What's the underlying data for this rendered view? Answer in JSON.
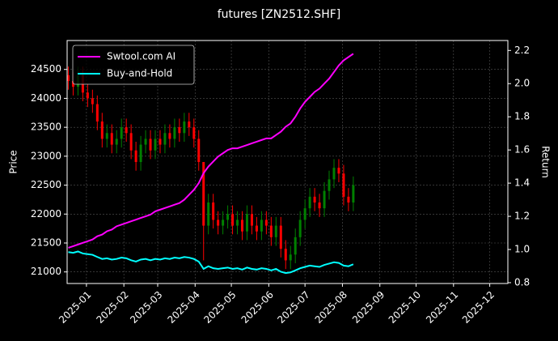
{
  "chart_data": {
    "type": "candlestick",
    "title": "futures [ZN2512.SHF]",
    "ylabel": "Price",
    "y2label": "Return",
    "up_color": "#008000",
    "down_color": "#ff0000",
    "grid": true,
    "legend": "upper left",
    "x": [
      "2024-12-17",
      "2024-12-21",
      "2024-12-25",
      "2024-12-29",
      "2025-01-02",
      "2025-01-06",
      "2025-01-10",
      "2025-01-14",
      "2025-01-18",
      "2025-01-22",
      "2025-01-26",
      "2025-01-30",
      "2025-02-03",
      "2025-02-07",
      "2025-02-11",
      "2025-02-15",
      "2025-02-19",
      "2025-02-23",
      "2025-02-27",
      "2025-03-03",
      "2025-03-07",
      "2025-03-11",
      "2025-03-15",
      "2025-03-19",
      "2025-03-23",
      "2025-03-27",
      "2025-03-31",
      "2025-04-04",
      "2025-04-08",
      "2025-04-12",
      "2025-04-16",
      "2025-04-20",
      "2025-04-24",
      "2025-04-28",
      "2025-05-02",
      "2025-05-06",
      "2025-05-10",
      "2025-05-14",
      "2025-05-18",
      "2025-05-22",
      "2025-05-26",
      "2025-05-30",
      "2025-06-03",
      "2025-06-07",
      "2025-06-11",
      "2025-06-15",
      "2025-06-19",
      "2025-06-23",
      "2025-06-27",
      "2025-07-01",
      "2025-07-05",
      "2025-07-09",
      "2025-07-13",
      "2025-07-17",
      "2025-07-21",
      "2025-07-25",
      "2025-07-29",
      "2025-08-02",
      "2025-08-06",
      "2025-08-10"
    ],
    "open": [
      24400,
      24300,
      24200,
      24400,
      24100,
      24000,
      23900,
      23600,
      23300,
      23400,
      23200,
      23300,
      23500,
      23400,
      23100,
      22900,
      23200,
      23300,
      23100,
      23300,
      23200,
      23400,
      23300,
      23500,
      23400,
      23600,
      23500,
      23300,
      22900,
      21800,
      22200,
      21900,
      21800,
      21900,
      22000,
      21800,
      21900,
      21700,
      22000,
      21800,
      21700,
      21900,
      21800,
      21600,
      21800,
      21400,
      21200,
      21300,
      21600,
      21900,
      22100,
      22300,
      22200,
      22100,
      22400,
      22600,
      22800,
      22700,
      22300,
      22200
    ],
    "high": [
      24550,
      24450,
      24550,
      24550,
      24250,
      24150,
      24050,
      23750,
      23550,
      23550,
      23450,
      23650,
      23650,
      23550,
      23250,
      23350,
      23450,
      23450,
      23450,
      23450,
      23550,
      23550,
      23650,
      23650,
      23750,
      23750,
      23650,
      23450,
      22900,
      22350,
      22350,
      22050,
      22050,
      22150,
      22150,
      22050,
      22050,
      22150,
      22150,
      21950,
      22050,
      22050,
      21950,
      21950,
      21950,
      21550,
      21450,
      21750,
      22050,
      22250,
      22450,
      22450,
      22350,
      22550,
      22750,
      22950,
      22950,
      22850,
      22450,
      22650
    ],
    "low": [
      24150,
      24050,
      24050,
      23950,
      23850,
      23750,
      23450,
      23150,
      23150,
      23050,
      23050,
      23150,
      23250,
      22950,
      22750,
      22750,
      23050,
      22950,
      22950,
      23050,
      23050,
      23150,
      23150,
      23250,
      23250,
      23350,
      23150,
      22750,
      21200,
      21650,
      21750,
      21650,
      21650,
      21750,
      21650,
      21650,
      21550,
      21550,
      21650,
      21550,
      21550,
      21650,
      21450,
      21450,
      21250,
      21050,
      21050,
      21150,
      21450,
      21750,
      21950,
      22050,
      21950,
      21950,
      22250,
      22450,
      22550,
      22150,
      22050,
      22050
    ],
    "close": [
      24300,
      24200,
      24400,
      24100,
      24000,
      23900,
      23600,
      23300,
      23400,
      23200,
      23300,
      23500,
      23400,
      23100,
      22900,
      23200,
      23300,
      23100,
      23300,
      23200,
      23400,
      23300,
      23500,
      23400,
      23600,
      23500,
      23300,
      22900,
      21800,
      22200,
      21900,
      21800,
      21900,
      22000,
      21800,
      21900,
      21700,
      22000,
      21800,
      21700,
      21900,
      21800,
      21600,
      21800,
      21400,
      21200,
      21300,
      21600,
      21900,
      22100,
      22300,
      22200,
      22100,
      22400,
      22600,
      22800,
      22700,
      22300,
      22200,
      22500
    ],
    "series": [
      {
        "name": "Swtool.com AI",
        "color": "#ff00ff",
        "axis": "y2",
        "values": [
          1.01,
          1.02,
          1.03,
          1.04,
          1.05,
          1.06,
          1.08,
          1.09,
          1.11,
          1.12,
          1.14,
          1.15,
          1.16,
          1.17,
          1.18,
          1.19,
          1.2,
          1.21,
          1.23,
          1.24,
          1.25,
          1.26,
          1.27,
          1.28,
          1.3,
          1.33,
          1.36,
          1.4,
          1.46,
          1.5,
          1.53,
          1.56,
          1.58,
          1.6,
          1.61,
          1.61,
          1.62,
          1.63,
          1.64,
          1.65,
          1.66,
          1.67,
          1.67,
          1.69,
          1.71,
          1.74,
          1.76,
          1.8,
          1.85,
          1.89,
          1.92,
          1.95,
          1.97,
          2.0,
          2.03,
          2.07,
          2.11,
          2.14,
          2.16,
          2.18
        ]
      },
      {
        "name": "Buy-and-Hold",
        "color": "#00ffff",
        "axis": "y2",
        "values": [
          0.984,
          0.98,
          0.988,
          0.976,
          0.972,
          0.968,
          0.955,
          0.943,
          0.947,
          0.939,
          0.943,
          0.951,
          0.947,
          0.935,
          0.927,
          0.939,
          0.943,
          0.935,
          0.943,
          0.939,
          0.947,
          0.943,
          0.951,
          0.947,
          0.955,
          0.951,
          0.943,
          0.927,
          0.883,
          0.899,
          0.887,
          0.883,
          0.887,
          0.891,
          0.883,
          0.887,
          0.879,
          0.891,
          0.883,
          0.879,
          0.887,
          0.883,
          0.874,
          0.883,
          0.866,
          0.858,
          0.862,
          0.874,
          0.887,
          0.895,
          0.903,
          0.899,
          0.895,
          0.907,
          0.915,
          0.923,
          0.919,
          0.903,
          0.899,
          0.911
        ]
      }
    ],
    "xlim": [
      "2024-12-16",
      "2025-12-16"
    ],
    "xticks": [
      "2025-01",
      "2025-02",
      "2025-03",
      "2025-04",
      "2025-05",
      "2025-06",
      "2025-07",
      "2025-08",
      "2025-09",
      "2025-10",
      "2025-11",
      "2025-12"
    ],
    "ylim": [
      20800,
      25000
    ],
    "yticks": [
      21000,
      21500,
      22000,
      22500,
      23000,
      23500,
      24000,
      24500
    ],
    "y2lim": [
      0.795,
      2.26
    ],
    "y2ticks": [
      0.8,
      {
        "value": 1.0,
        "label": "1.0"
      },
      1.2,
      1.4,
      1.6,
      1.8,
      {
        "value": 2.0,
        "label": "2.0"
      },
      2.2
    ]
  }
}
